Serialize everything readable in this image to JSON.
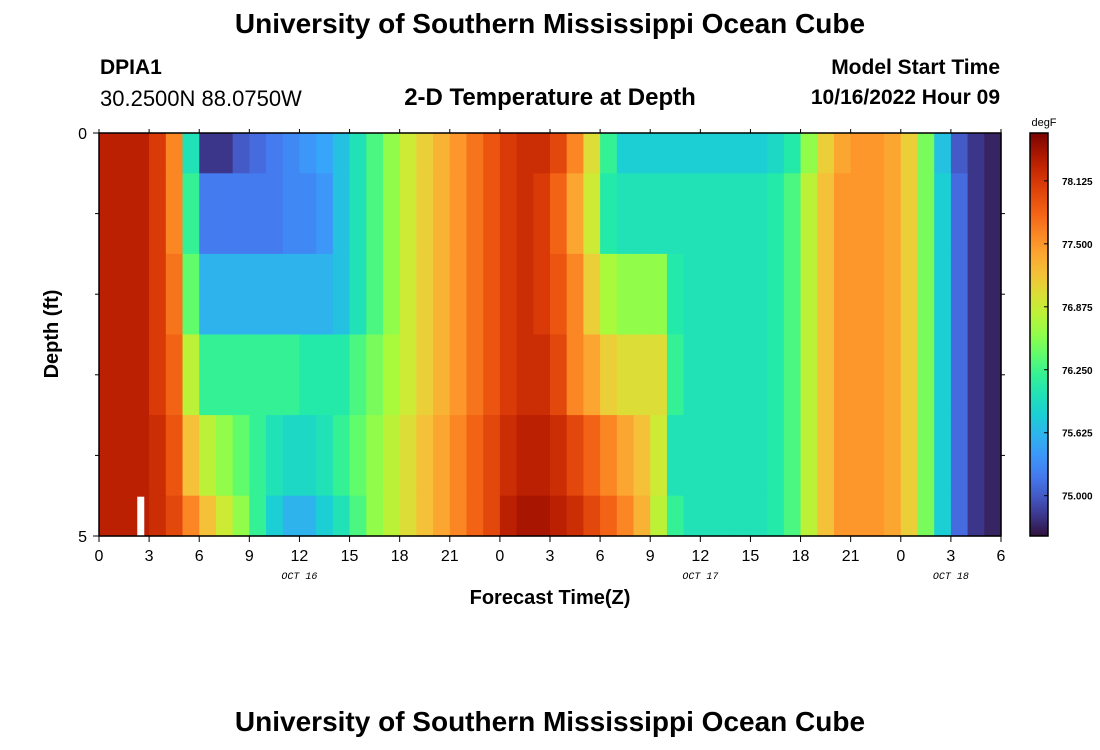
{
  "header": {
    "title": "University of Southern Mississippi Ocean Cube",
    "station_id": "DPIA1",
    "coordinates": "30.2500N  88.0750W",
    "plot_title": "2-D Temperature at Depth",
    "model_start_label": "Model Start Time",
    "model_start_time": "10/16/2022 Hour 09"
  },
  "footer": {
    "title": "University of Southern Mississippi Ocean Cube"
  },
  "colors": {
    "nan_marker": "#ffffff",
    "frame": "#000000"
  },
  "chart_data": {
    "type": "heatmap",
    "title": "2-D Temperature at Depth",
    "xlabel": "Forecast Time(Z)",
    "ylabel": "Depth (ft)",
    "x_range_hours": [
      0,
      54
    ],
    "y_range_ft": [
      0,
      5
    ],
    "x_ticks": [
      0,
      3,
      6,
      9,
      12,
      15,
      18,
      21,
      24,
      27,
      30,
      33,
      36,
      39,
      42,
      45,
      48,
      51,
      54
    ],
    "x_tick_labels": [
      "0",
      "3",
      "6",
      "9",
      "12",
      "15",
      "18",
      "21",
      "0",
      "3",
      "6",
      "9",
      "12",
      "15",
      "18",
      "21",
      "0",
      "3",
      "6"
    ],
    "y_ticks": [
      0,
      5
    ],
    "y_tick_labels": [
      "0",
      "5"
    ],
    "date_labels": [
      {
        "hour": 12,
        "text": "OCT 16"
      },
      {
        "hour": 36,
        "text": "OCT 17"
      },
      {
        "hour": 51,
        "text": "OCT 18"
      }
    ],
    "units": "degF",
    "color_range": [
      74.6,
      78.6
    ],
    "colorbar_ticks": [
      78.125,
      77.5,
      76.875,
      76.25,
      75.625,
      75.0
    ],
    "colorbar_tick_labels": [
      "78.125",
      "77.500",
      "76.875",
      "76.250",
      "75.625",
      "75.000"
    ],
    "depth_bins_ft": [
      [
        0,
        0.5
      ],
      [
        0.5,
        1.5
      ],
      [
        1.5,
        2.5
      ],
      [
        2.5,
        3.5
      ],
      [
        3.5,
        4.5
      ],
      [
        4.5,
        5.0
      ]
    ],
    "time_hours": [
      0,
      1,
      2,
      3,
      4,
      5,
      6,
      7,
      8,
      9,
      10,
      11,
      12,
      13,
      14,
      15,
      16,
      17,
      18,
      19,
      20,
      21,
      22,
      23,
      24,
      25,
      26,
      27,
      28,
      29,
      30,
      31,
      32,
      33,
      34,
      35,
      36,
      37,
      38,
      39,
      40,
      41,
      42,
      43,
      44,
      45,
      46,
      47,
      48,
      49,
      50,
      51,
      52,
      53
    ],
    "missing": [
      {
        "hour": 2,
        "depth_bin": 5
      }
    ],
    "values": [
      [
        78.3,
        78.3,
        78.3,
        78.1,
        77.6,
        76.0,
        74.8,
        74.8,
        75.0,
        75.1,
        75.2,
        75.3,
        75.4,
        75.5,
        75.7,
        76.0,
        76.3,
        76.6,
        76.9,
        77.1,
        77.3,
        77.5,
        77.7,
        77.9,
        78.1,
        78.2,
        78.2,
        78.0,
        77.6,
        77.0,
        76.2,
        75.8,
        75.8,
        75.8,
        75.8,
        75.8,
        75.8,
        75.8,
        75.8,
        75.8,
        75.9,
        76.1,
        76.6,
        77.1,
        77.4,
        77.5,
        77.5,
        77.4,
        77.1,
        76.5,
        75.7,
        75.0,
        74.8,
        74.7
      ],
      [
        78.3,
        78.3,
        78.3,
        78.1,
        77.6,
        76.2,
        75.2,
        75.2,
        75.2,
        75.2,
        75.2,
        75.3,
        75.3,
        75.4,
        75.7,
        76.0,
        76.3,
        76.6,
        76.9,
        77.1,
        77.3,
        77.5,
        77.7,
        77.9,
        78.1,
        78.2,
        78.1,
        77.8,
        77.4,
        76.9,
        76.1,
        76.0,
        76.0,
        76.0,
        76.0,
        76.0,
        76.0,
        76.0,
        76.0,
        76.0,
        76.1,
        76.3,
        76.8,
        77.2,
        77.5,
        77.5,
        77.5,
        77.4,
        77.1,
        76.5,
        75.8,
        75.1,
        74.8,
        74.7
      ],
      [
        78.3,
        78.3,
        78.3,
        78.1,
        77.7,
        76.4,
        75.6,
        75.6,
        75.6,
        75.6,
        75.6,
        75.6,
        75.6,
        75.6,
        75.7,
        76.0,
        76.3,
        76.6,
        76.9,
        77.1,
        77.3,
        77.5,
        77.7,
        77.9,
        78.1,
        78.2,
        78.1,
        77.9,
        77.6,
        77.1,
        76.7,
        76.6,
        76.6,
        76.6,
        76.1,
        76.0,
        76.0,
        76.0,
        76.0,
        76.0,
        76.1,
        76.3,
        76.8,
        77.2,
        77.5,
        77.5,
        77.5,
        77.4,
        77.1,
        76.5,
        75.8,
        75.1,
        74.8,
        74.7
      ],
      [
        78.3,
        78.3,
        78.3,
        78.1,
        77.8,
        76.8,
        76.2,
        76.2,
        76.2,
        76.2,
        76.2,
        76.2,
        76.1,
        76.1,
        76.1,
        76.3,
        76.5,
        76.7,
        76.9,
        77.1,
        77.3,
        77.5,
        77.7,
        77.9,
        78.1,
        78.2,
        78.2,
        78.0,
        77.6,
        77.4,
        77.1,
        77.0,
        77.0,
        77.0,
        76.2,
        76.0,
        76.0,
        76.0,
        76.0,
        76.0,
        76.1,
        76.3,
        76.8,
        77.2,
        77.5,
        77.5,
        77.5,
        77.4,
        77.1,
        76.5,
        75.8,
        75.1,
        74.8,
        74.7
      ],
      [
        78.3,
        78.3,
        78.3,
        78.2,
        77.9,
        77.2,
        76.8,
        76.6,
        76.4,
        76.2,
        76.0,
        75.9,
        75.9,
        76.0,
        76.2,
        76.4,
        76.6,
        76.8,
        77.0,
        77.2,
        77.4,
        77.6,
        77.8,
        78.0,
        78.2,
        78.3,
        78.3,
        78.2,
        78.0,
        77.8,
        77.6,
        77.4,
        77.2,
        76.9,
        76.0,
        76.0,
        76.0,
        76.0,
        76.0,
        76.0,
        76.1,
        76.3,
        76.8,
        77.2,
        77.5,
        77.5,
        77.5,
        77.4,
        77.1,
        76.5,
        75.8,
        75.1,
        74.8,
        74.7
      ],
      [
        78.3,
        78.3,
        78.3,
        78.2,
        78.0,
        77.6,
        77.2,
        76.9,
        76.6,
        76.2,
        75.8,
        75.6,
        75.6,
        75.8,
        76.0,
        76.3,
        76.6,
        76.8,
        77.0,
        77.2,
        77.4,
        77.6,
        77.8,
        78.0,
        78.3,
        78.4,
        78.4,
        78.3,
        78.2,
        78.0,
        77.8,
        77.6,
        77.3,
        76.8,
        76.2,
        76.0,
        76.0,
        76.0,
        76.0,
        76.0,
        76.1,
        76.3,
        76.8,
        77.2,
        77.5,
        77.5,
        77.5,
        77.4,
        77.1,
        76.5,
        75.8,
        75.1,
        74.8,
        74.7
      ]
    ]
  }
}
